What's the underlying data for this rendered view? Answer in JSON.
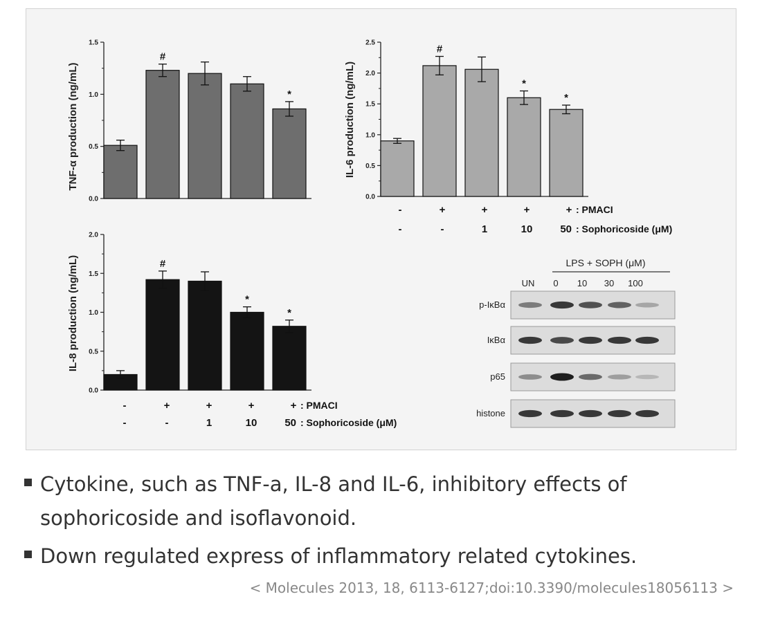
{
  "colors": {
    "panel_bg": "#f4f4f4",
    "tnf_bar": "#6e6e6e",
    "il6_bar": "#a9a9a9",
    "il8_bar": "#141414",
    "text": "#333333",
    "citation": "#888888"
  },
  "treatment_labels": {
    "pmaci_row": [
      "-",
      "+",
      "+",
      "+",
      "+"
    ],
    "pmaci_suffix": ": PMACI",
    "soph_row": [
      "-",
      "-",
      "1",
      "10",
      "50"
    ],
    "soph_suffix": ": Sophoricoside (μM)"
  },
  "chart_data": [
    {
      "type": "bar",
      "ylabel": "TNF-α production (ng/mL)",
      "ylim": [
        0,
        1.5
      ],
      "yticks": [
        "0.0",
        "0.5",
        "1.0",
        "1.5"
      ],
      "values": [
        0.51,
        1.23,
        1.2,
        1.1,
        0.86
      ],
      "errors": [
        0.05,
        0.06,
        0.11,
        0.07,
        0.07
      ],
      "markers": [
        "",
        "#",
        "",
        "",
        "*"
      ]
    },
    {
      "type": "bar",
      "ylabel": "IL-6 production (ng/mL)",
      "ylim": [
        0,
        2.5
      ],
      "yticks": [
        "0.0",
        "0.5",
        "1.0",
        "1.5",
        "2.0",
        "2.5"
      ],
      "values": [
        0.9,
        2.12,
        2.06,
        1.6,
        1.41
      ],
      "errors": [
        0.04,
        0.15,
        0.2,
        0.11,
        0.07
      ],
      "markers": [
        "",
        "#",
        "",
        "*",
        "*"
      ]
    },
    {
      "type": "bar",
      "ylabel": "IL-8 production (ng/mL)",
      "ylim": [
        0,
        2.0
      ],
      "yticks": [
        "0.0",
        "0.5",
        "1.0",
        "1.5",
        "2.0"
      ],
      "values": [
        0.2,
        1.42,
        1.4,
        1.0,
        0.82
      ],
      "errors": [
        0.05,
        0.11,
        0.12,
        0.07,
        0.08
      ],
      "markers": [
        "",
        "#",
        "",
        "*",
        "*"
      ]
    }
  ],
  "blot": {
    "header": "LPS + SOPH (μM)",
    "lanes": [
      "UN",
      "0",
      "10",
      "30",
      "100"
    ],
    "rows": [
      {
        "label": "p-IκBα",
        "intensity": [
          0.45,
          0.85,
          0.7,
          0.6,
          0.2
        ]
      },
      {
        "label": "IκBα",
        "intensity": [
          0.85,
          0.75,
          0.85,
          0.85,
          0.85
        ]
      },
      {
        "label": "p65",
        "intensity": [
          0.35,
          1.0,
          0.55,
          0.25,
          0.1
        ]
      },
      {
        "label": "histone",
        "intensity": [
          0.85,
          0.85,
          0.85,
          0.85,
          0.85
        ]
      }
    ]
  },
  "bullets": [
    "Cytokine, such as TNF-a, IL-8 and IL-6, inhibitory effects of sophoricoside and isoflavonoid.",
    "Down regulated express of inflammatory related cytokines."
  ],
  "citation": "< Molecules 2013, 18, 6113-6127;doi:10.3390/molecules18056113 >"
}
